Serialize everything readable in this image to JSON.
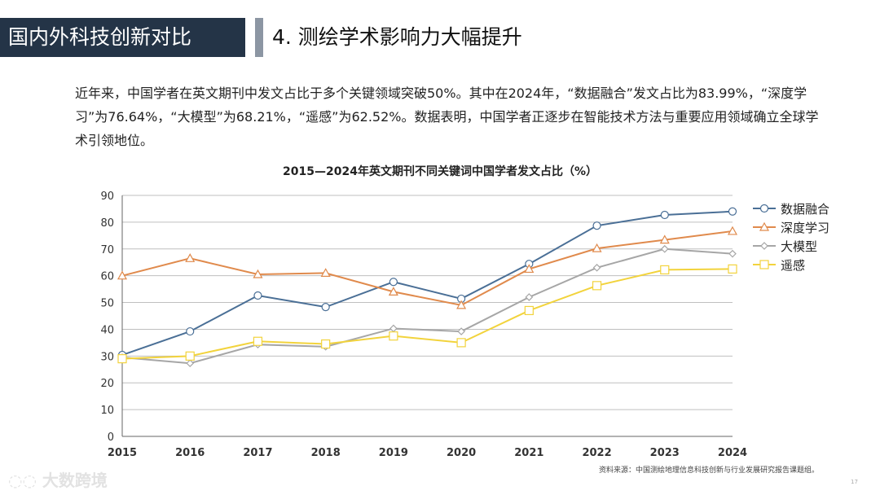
{
  "header": {
    "section": "国内外科技创新对比",
    "title": "4. 测绘学术影响力大幅提升"
  },
  "paragraph": "近年来，中国学者在英文期刊中发文占比于多个关键领域突破50%。其中在2024年，“数据融合”发文占比为83.99%，“深度学习”为76.64%，“大模型”为68.21%，“遥感”为62.52%。数据表明，中国学者正逐步在智能技术方法与重要应用领域确立全球学术引领地位。",
  "source": "资料来源：中国测绘地理信息科技创新与行业发展研究报告课题组。",
  "page_number": "17",
  "watermark": "大数跨境",
  "chart_data": {
    "type": "line",
    "title": "2015—2024年英文期刊不同关键词中国学者发文占比（%）",
    "x": [
      "2015",
      "2016",
      "2017",
      "2018",
      "2019",
      "2020",
      "2021",
      "2022",
      "2023",
      "2024"
    ],
    "ylim": [
      0,
      90
    ],
    "yticks": [
      0,
      10,
      20,
      30,
      40,
      50,
      60,
      70,
      80,
      90
    ],
    "grid": true,
    "legend": "right",
    "series": [
      {
        "name": "数据融合",
        "color": "#4a6f96",
        "marker": "circle",
        "values": [
          30.4,
          39.2,
          52.6,
          48.3,
          57.7,
          51.4,
          64.4,
          78.7,
          82.7,
          83.99
        ]
      },
      {
        "name": "深度学习",
        "color": "#e08a4c",
        "marker": "triangle",
        "values": [
          60,
          66.5,
          60.5,
          61,
          54,
          49,
          62.5,
          70.2,
          73.4,
          76.64
        ]
      },
      {
        "name": "大模型",
        "color": "#a6a6a6",
        "marker": "diamond",
        "values": [
          29.5,
          27.3,
          34.3,
          33.5,
          40.3,
          39.2,
          52,
          63,
          70,
          68.21
        ]
      },
      {
        "name": "遥感",
        "color": "#f2d33c",
        "marker": "square",
        "values": [
          29,
          30,
          35.5,
          34.5,
          37.5,
          35,
          47,
          56.3,
          62.2,
          62.52
        ]
      }
    ]
  }
}
